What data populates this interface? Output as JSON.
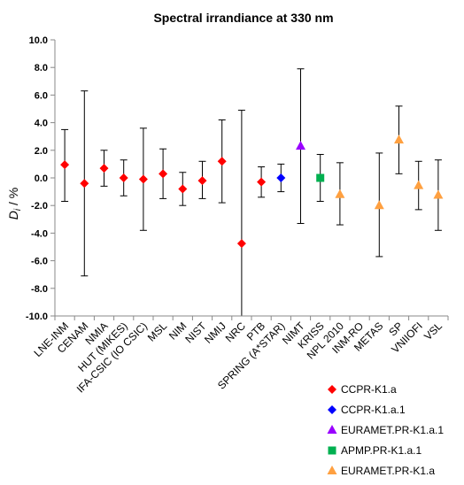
{
  "chart_data": {
    "type": "scatter",
    "title": "Spectral irrandiance at 330 nm",
    "ylabel_main": "D",
    "ylabel_sub": "i",
    "ylabel_unit": " / %",
    "ylim": [
      -10,
      10
    ],
    "yticks": [
      "10.0",
      "8.0",
      "6.0",
      "4.0",
      "2.0",
      "0.0",
      "-2.0",
      "-4.0",
      "-6.0",
      "-8.0",
      "-10.0"
    ],
    "ytick_values": [
      10,
      8,
      6,
      4,
      2,
      0,
      -2,
      -4,
      -6,
      -8,
      -10
    ],
    "grid": false,
    "legend_position": "bottom-right",
    "categories": [
      "LNE-INM",
      "CENAM",
      "NMIA",
      "HUT (MIKES)",
      "IFA-CSIC (IO CSIC)",
      "MSL",
      "NIM",
      "NIST",
      "NMIJ",
      "NRC",
      "PTB",
      "SPRING (A*STAR)",
      "NIMT",
      "KRISS",
      "NPL 2010",
      "INM-RO",
      "METAS",
      "SP",
      "VNIIOFI",
      "VSL"
    ],
    "series": [
      {
        "name": "CCPR-K1.a",
        "color": "#ff0000",
        "marker": "diamond",
        "points": [
          {
            "category": "LNE-INM",
            "y": 0.95,
            "low": -1.7,
            "high": 3.5
          },
          {
            "category": "CENAM",
            "y": -0.4,
            "low": -7.1,
            "high": 6.3
          },
          {
            "category": "NMIA",
            "y": 0.7,
            "low": -0.6,
            "high": 2.0
          },
          {
            "category": "HUT (MIKES)",
            "y": 0.0,
            "low": -1.3,
            "high": 1.3
          },
          {
            "category": "IFA-CSIC (IO CSIC)",
            "y": -0.1,
            "low": -3.8,
            "high": 3.6
          },
          {
            "category": "MSL",
            "y": 0.3,
            "low": -1.5,
            "high": 2.1
          },
          {
            "category": "NIM",
            "y": -0.8,
            "low": -2.0,
            "high": 0.4
          },
          {
            "category": "NIST",
            "y": -0.2,
            "low": -1.5,
            "high": 1.2
          },
          {
            "category": "NMIJ",
            "y": 1.2,
            "low": -1.8,
            "high": 4.2
          },
          {
            "category": "NRC",
            "y": -4.75,
            "low": -10.0,
            "high": 4.9
          },
          {
            "category": "PTB",
            "y": -0.3,
            "low": -1.4,
            "high": 0.8
          }
        ]
      },
      {
        "name": "CCPR-K1.a.1",
        "color": "#0000ff",
        "marker": "diamond",
        "points": [
          {
            "category": "SPRING (A*STAR)",
            "y": 0.0,
            "low": -1.0,
            "high": 1.0
          }
        ]
      },
      {
        "name": "EURAMET.PR-K1.a.1",
        "color": "#9900ff",
        "marker": "triangle",
        "points": [
          {
            "category": "NIMT",
            "y": 2.3,
            "low": -3.3,
            "high": 7.9
          }
        ]
      },
      {
        "name": "APMP.PR-K1.a.1",
        "color": "#00b050",
        "marker": "square",
        "points": [
          {
            "category": "KRISS",
            "y": 0.0,
            "low": -1.7,
            "high": 1.7
          }
        ]
      },
      {
        "name": "EURAMET.PR-K1.a",
        "color": "#ffa040",
        "marker": "triangle",
        "points": [
          {
            "category": "NPL 2010",
            "y": -1.2,
            "low": -3.4,
            "high": 1.1
          },
          {
            "category": "METAS",
            "y": -2.0,
            "low": -5.7,
            "high": 1.8
          },
          {
            "category": "SP",
            "y": 2.75,
            "low": 0.3,
            "high": 5.2
          },
          {
            "category": "VNIIOFI",
            "y": -0.55,
            "low": -2.3,
            "high": 1.2
          },
          {
            "category": "VSL",
            "y": -1.25,
            "low": -3.8,
            "high": 1.3
          }
        ]
      }
    ]
  }
}
